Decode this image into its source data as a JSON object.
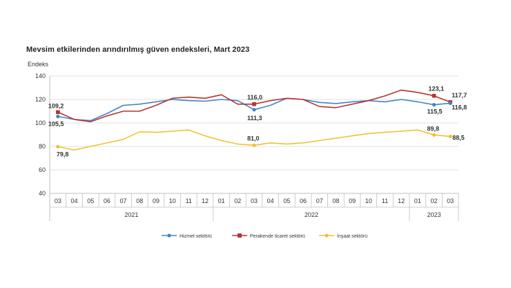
{
  "chart_data": {
    "type": "line",
    "title": "Mevsim etkilerinden arındırılmış güven endeksleri, Mart 2023",
    "ylabel": "Endeks",
    "xlabel": "",
    "ylim": [
      40,
      140
    ],
    "yticks": [
      40,
      60,
      80,
      100,
      120,
      140
    ],
    "gridlines": true,
    "legend_position": "bottom",
    "categories": [
      "03",
      "04",
      "05",
      "06",
      "07",
      "08",
      "09",
      "10",
      "11",
      "12",
      "01",
      "02",
      "03",
      "04",
      "05",
      "06",
      "07",
      "08",
      "09",
      "10",
      "11",
      "12",
      "01",
      "02",
      "03"
    ],
    "year_groups": [
      {
        "label": "2021",
        "start": 0,
        "end": 9
      },
      {
        "label": "2022",
        "start": 10,
        "end": 21
      },
      {
        "label": "2023",
        "start": 22,
        "end": 24
      }
    ],
    "series": [
      {
        "name": "Hizmet sektörü",
        "color": "#3d85c6",
        "values": [
          105.5,
          103,
          102,
          108,
          115,
          116,
          118,
          120,
          119,
          118.5,
          120,
          119,
          111.3,
          115,
          121,
          120,
          117.5,
          116.5,
          118,
          119,
          118,
          120,
          118,
          115.5,
          116.8
        ]
      },
      {
        "name": "Perakende ticaret sektörü",
        "color": "#b83232",
        "values": [
          109.2,
          103,
          101,
          106,
          110,
          110,
          115,
          121,
          122,
          121,
          124,
          116,
          116.0,
          119,
          121,
          120,
          114,
          113,
          116,
          119,
          123,
          128,
          126,
          123.1,
          117.7
        ]
      },
      {
        "name": "İnşaat sektörü",
        "color": "#f2c12e",
        "values": [
          79.8,
          77,
          80,
          83,
          86,
          92.5,
          92,
          93,
          94,
          89,
          85,
          82,
          81.0,
          83,
          82,
          83,
          85,
          87,
          89,
          91,
          92,
          93,
          94,
          89.8,
          88.5
        ]
      }
    ],
    "annotations": [
      {
        "series": 0,
        "index": 0,
        "text": "105,5"
      },
      {
        "series": 1,
        "index": 0,
        "text": "109,2"
      },
      {
        "series": 2,
        "index": 0,
        "text": "79,8"
      },
      {
        "series": 1,
        "index": 12,
        "text": "116,0"
      },
      {
        "series": 0,
        "index": 12,
        "text": "111,3"
      },
      {
        "series": 2,
        "index": 12,
        "text": "81,0"
      },
      {
        "series": 1,
        "index": 23,
        "text": "123,1"
      },
      {
        "series": 0,
        "index": 23,
        "text": "115,5"
      },
      {
        "series": 2,
        "index": 23,
        "text": "89,8"
      },
      {
        "series": 1,
        "index": 24,
        "text": "117,7"
      },
      {
        "series": 0,
        "index": 24,
        "text": "116,8"
      },
      {
        "series": 2,
        "index": 24,
        "text": "88,5"
      }
    ]
  }
}
